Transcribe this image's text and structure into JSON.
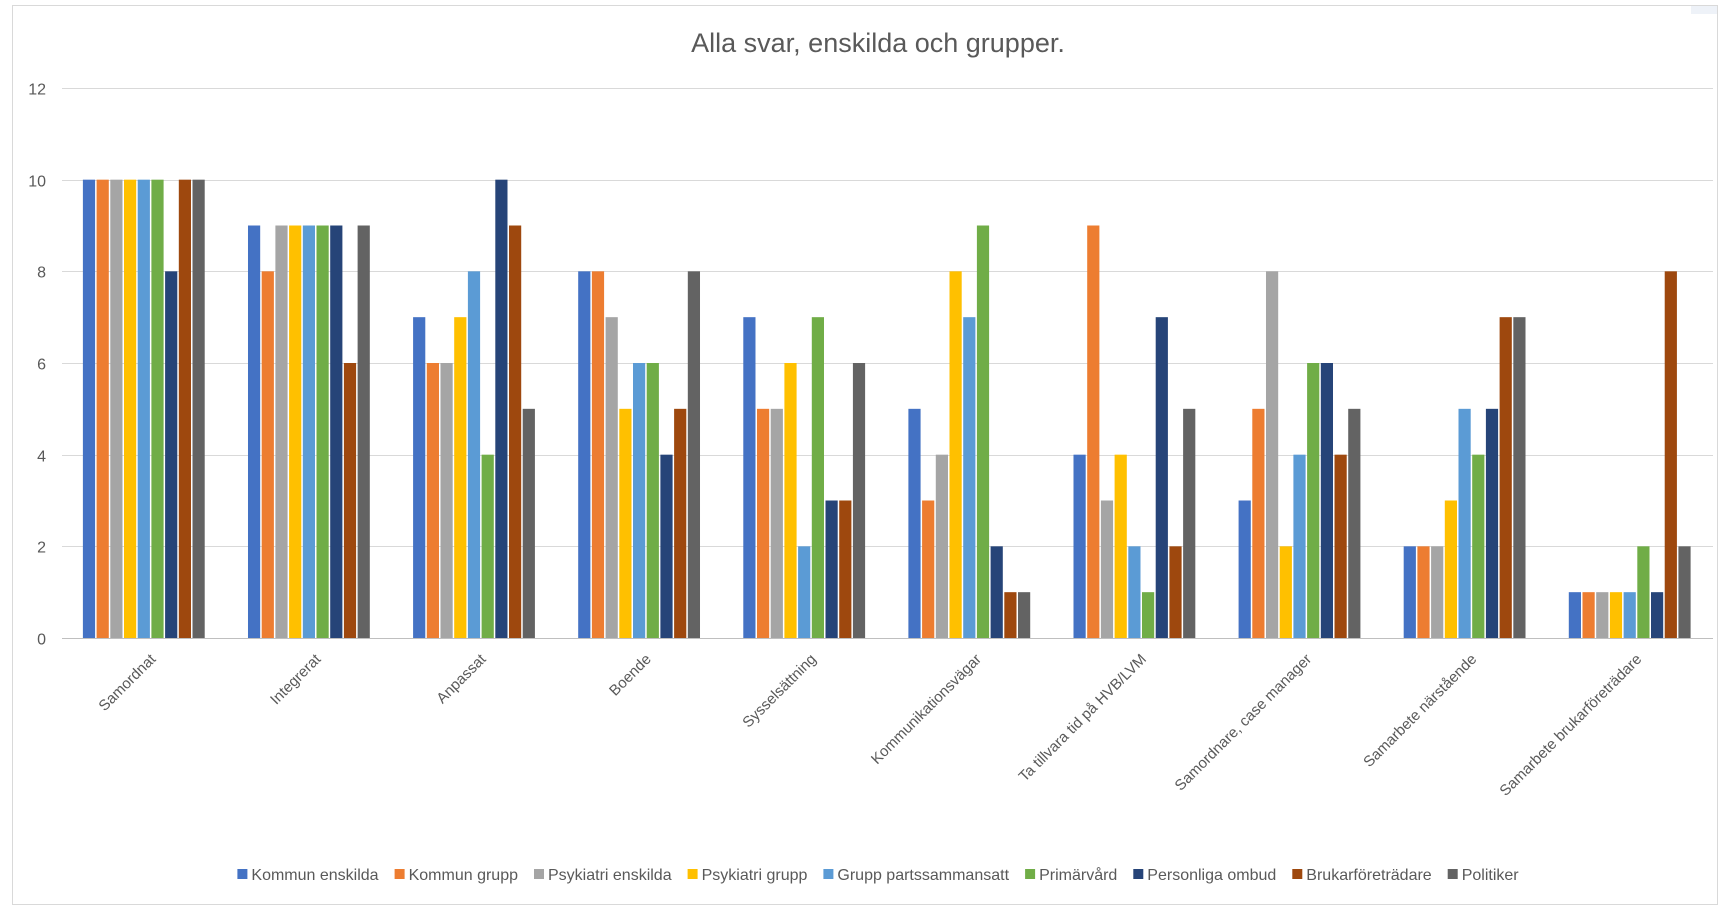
{
  "chart_data": {
    "type": "bar",
    "title": "Alla svar, enskilda och grupper.",
    "xlabel": "",
    "ylabel": "",
    "ylim": [
      0,
      12
    ],
    "yticks": [
      0,
      2,
      4,
      6,
      8,
      10,
      12
    ],
    "grid": true,
    "legend_position": "bottom",
    "categories": [
      "Samordnat",
      "Integrerat",
      "Anpassat",
      "Boende",
      "Sysselsättning",
      "Kommunikationsvägar",
      "Ta tillvara tid på HVB/LVM",
      "Samordnare, case manager",
      "Samarbete närstående",
      "Samarbete brukarföreträdare"
    ],
    "series": [
      {
        "name": "Kommun enskilda",
        "color": "#4472C4",
        "values": [
          10,
          9,
          7,
          8,
          7,
          5,
          4,
          3,
          2,
          1
        ]
      },
      {
        "name": "Kommun grupp",
        "color": "#ED7D31",
        "values": [
          10,
          8,
          6,
          8,
          5,
          3,
          9,
          5,
          2,
          1
        ]
      },
      {
        "name": "Psykiatri enskilda",
        "color": "#A5A5A5",
        "values": [
          10,
          9,
          6,
          7,
          5,
          4,
          3,
          8,
          2,
          1
        ]
      },
      {
        "name": "Psykiatri grupp",
        "color": "#FFC000",
        "values": [
          10,
          9,
          7,
          5,
          6,
          8,
          4,
          2,
          3,
          1
        ]
      },
      {
        "name": "Grupp partssammansatt",
        "color": "#5B9BD5",
        "values": [
          10,
          9,
          8,
          6,
          2,
          7,
          2,
          4,
          5,
          1
        ]
      },
      {
        "name": "Primärvård",
        "color": "#70AD47",
        "values": [
          10,
          9,
          4,
          6,
          7,
          9,
          1,
          6,
          4,
          2
        ]
      },
      {
        "name": "Personliga ombud",
        "color": "#264478",
        "values": [
          8,
          9,
          10,
          4,
          3,
          2,
          7,
          6,
          5,
          1
        ]
      },
      {
        "name": "Brukarföreträdare",
        "color": "#9E480E",
        "values": [
          10,
          6,
          9,
          5,
          3,
          1,
          2,
          4,
          7,
          8
        ]
      },
      {
        "name": "Politiker",
        "color": "#636363",
        "values": [
          10,
          9,
          5,
          8,
          6,
          1,
          5,
          5,
          7,
          2
        ]
      }
    ]
  }
}
